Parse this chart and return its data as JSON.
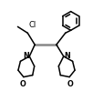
{
  "bg_color": "#ffffff",
  "line_color": "#000000",
  "line_width": 1.1,
  "bond_gray": "#888888",
  "cl_label": "Cl",
  "n_label": "N",
  "o_label": "O",
  "figsize": [
    1.02,
    1.11
  ],
  "dpi": 100,
  "xlim": [
    0,
    10.2
  ],
  "ylim": [
    0,
    11.1
  ]
}
